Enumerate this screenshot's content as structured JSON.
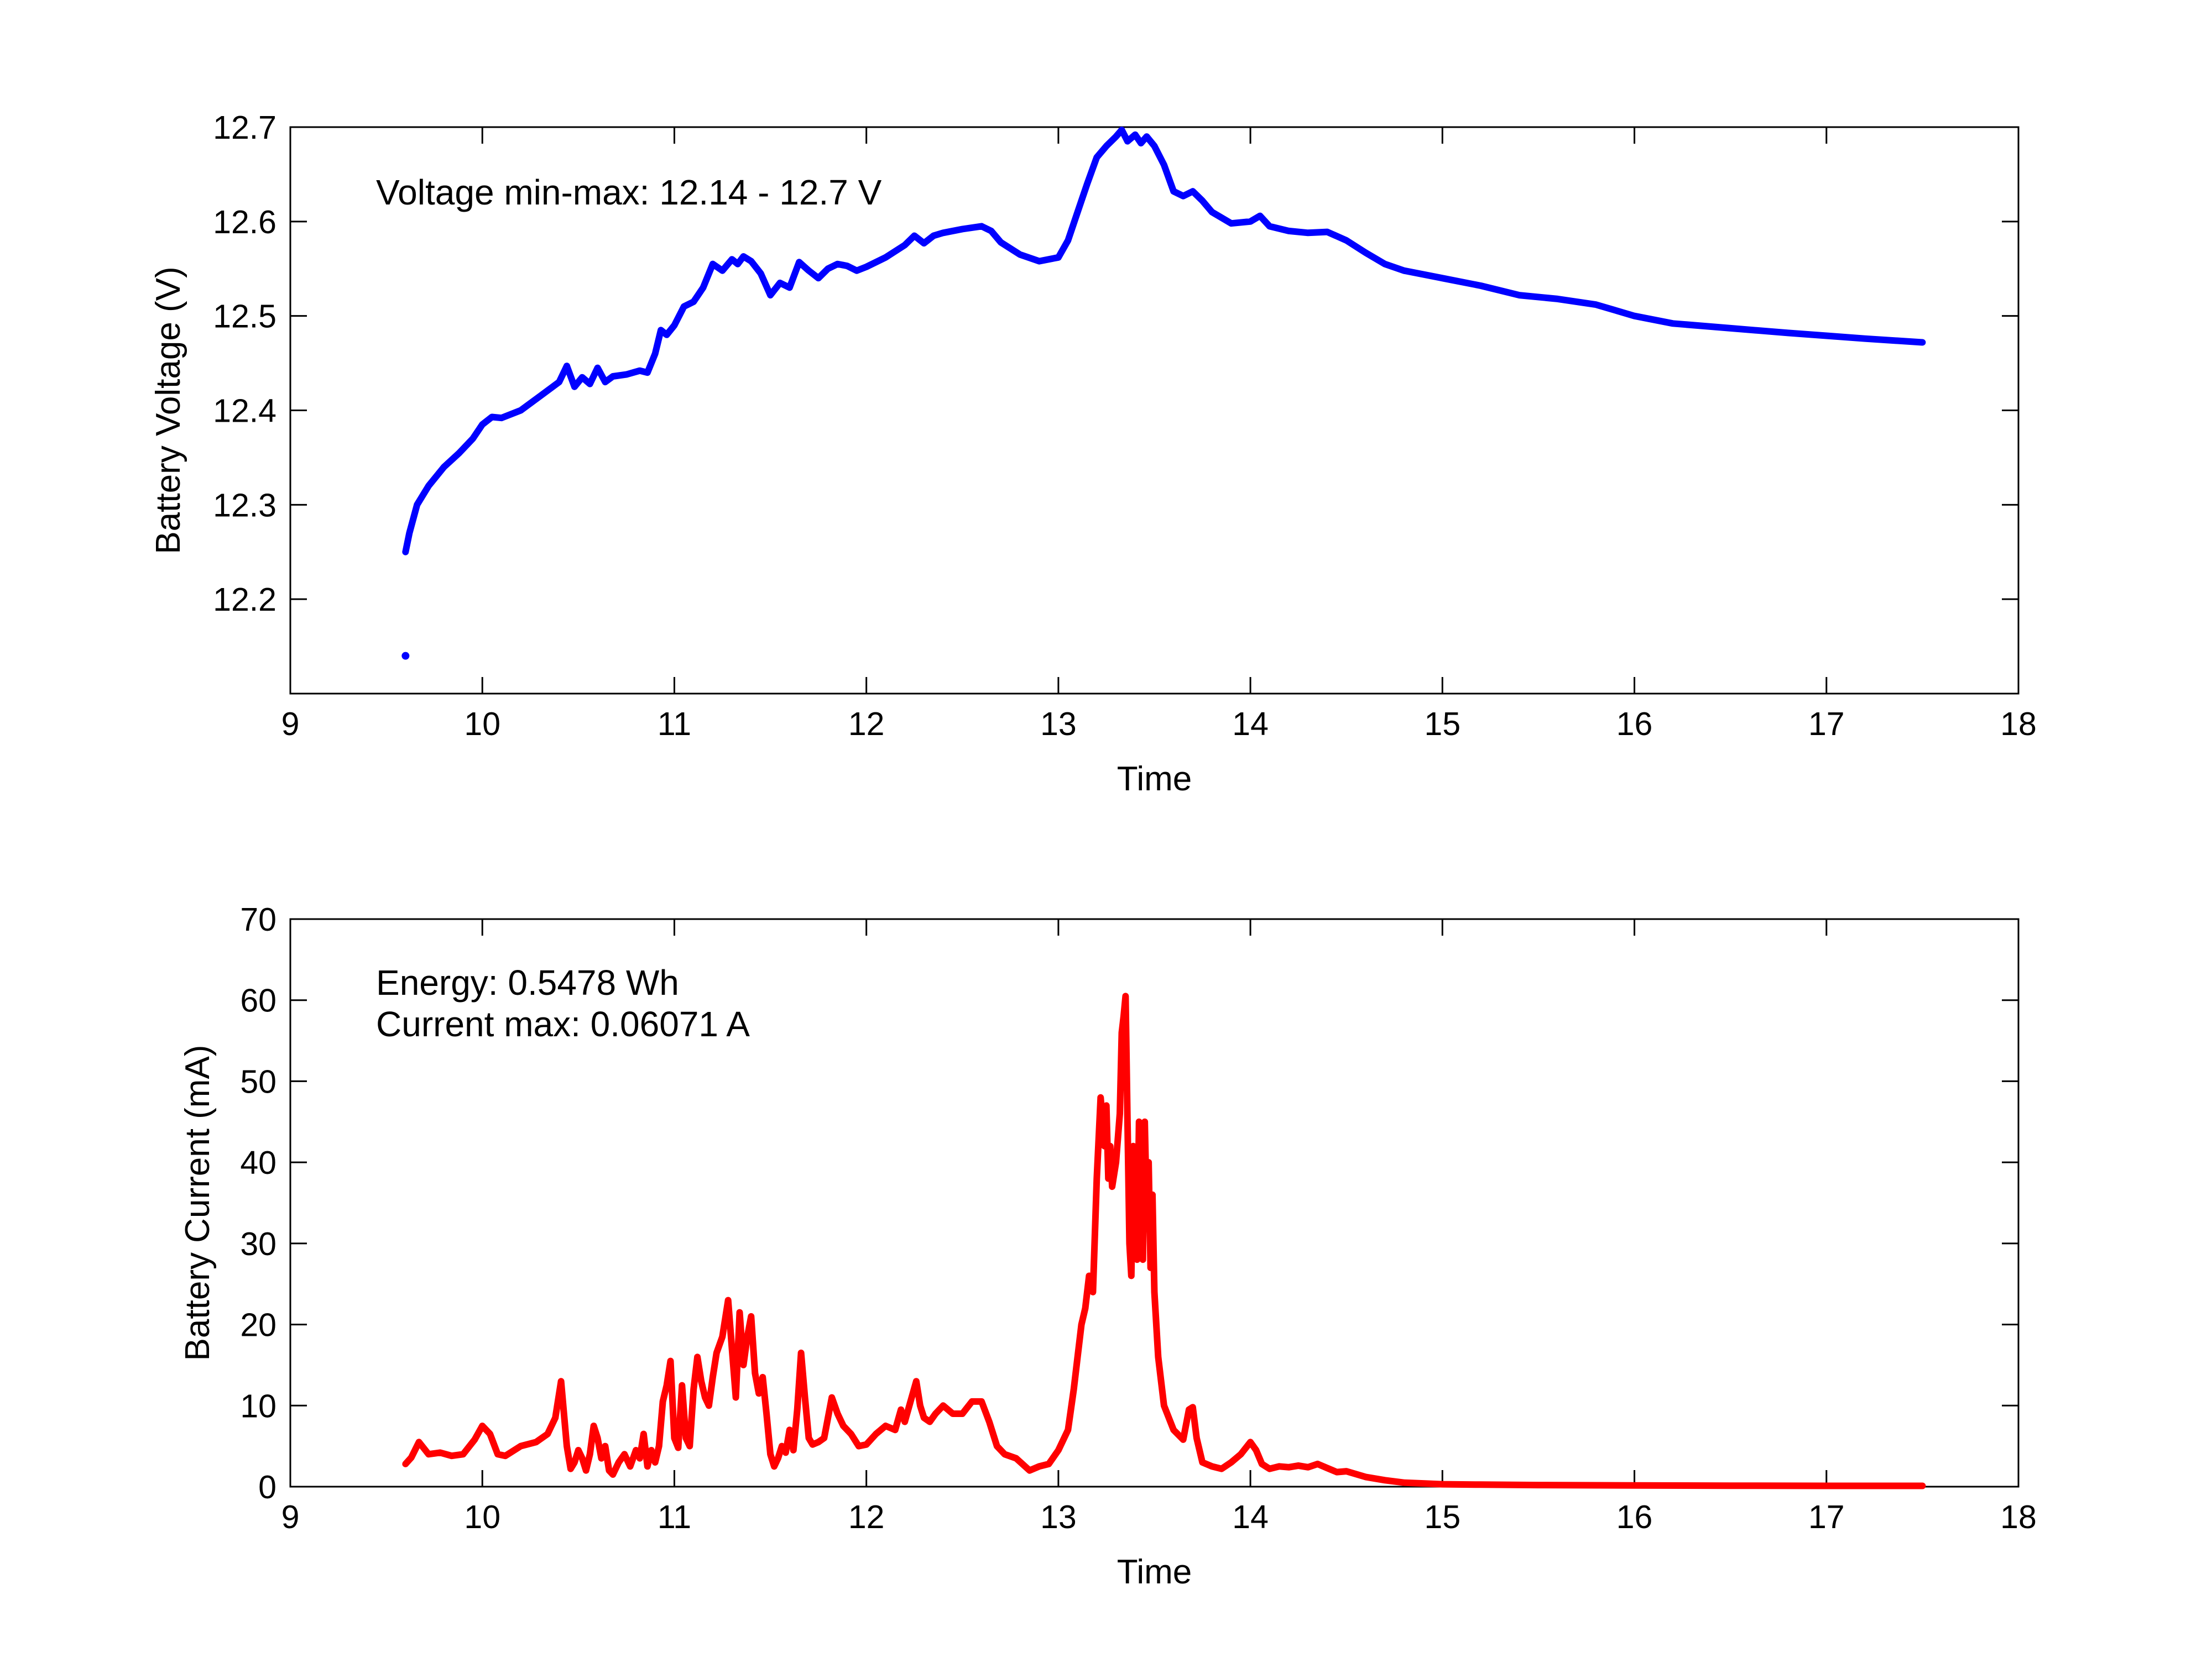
{
  "chart_data": [
    {
      "type": "line",
      "id": "voltage",
      "xlabel": "Time",
      "ylabel": "Battery Voltage (V)",
      "xlim": [
        9,
        18
      ],
      "ylim": [
        12.1,
        12.7
      ],
      "xticks": [
        9,
        10,
        11,
        12,
        13,
        14,
        15,
        16,
        17,
        18
      ],
      "yticks": [
        12.2,
        12.3,
        12.4,
        12.5,
        12.6,
        12.7
      ],
      "grid": false,
      "annotations": [
        "Voltage min-max: 12.14 - 12.7 V"
      ],
      "series": [
        {
          "color": "#0000ff",
          "x": [
            9.6,
            9.62,
            9.66,
            9.72,
            9.8,
            9.88,
            9.95,
            10.0,
            10.05,
            10.1,
            10.2,
            10.3,
            10.4,
            10.44,
            10.48,
            10.52,
            10.56,
            10.6,
            10.64,
            10.68,
            10.75,
            10.82,
            10.86,
            10.9,
            10.93,
            10.96,
            11.0,
            11.05,
            11.1,
            11.15,
            11.2,
            11.25,
            11.3,
            11.33,
            11.36,
            11.4,
            11.45,
            11.5,
            11.55,
            11.6,
            11.65,
            11.7,
            11.75,
            11.8,
            11.85,
            11.9,
            11.95,
            12.0,
            12.1,
            12.2,
            12.25,
            12.3,
            12.35,
            12.4,
            12.5,
            12.6,
            12.65,
            12.7,
            12.8,
            12.9,
            13.0,
            13.05,
            13.1,
            13.15,
            13.2,
            13.25,
            13.3,
            13.33,
            13.36,
            13.4,
            13.43,
            13.46,
            13.5,
            13.55,
            13.6,
            13.65,
            13.7,
            13.75,
            13.8,
            13.9,
            14.0,
            14.05,
            14.1,
            14.2,
            14.3,
            14.4,
            14.5,
            14.6,
            14.7,
            14.8,
            15.0,
            15.2,
            15.4,
            15.6,
            15.8,
            16.0,
            16.2,
            16.5,
            16.8,
            17.0,
            17.2,
            17.5
          ],
          "y": [
            12.25,
            12.27,
            12.3,
            12.32,
            12.34,
            12.355,
            12.37,
            12.385,
            12.393,
            12.392,
            12.4,
            12.415,
            12.43,
            12.447,
            12.425,
            12.435,
            12.428,
            12.445,
            12.43,
            12.436,
            12.438,
            12.442,
            12.44,
            12.46,
            12.485,
            12.48,
            12.49,
            12.51,
            12.515,
            12.53,
            12.555,
            12.548,
            12.56,
            12.555,
            12.563,
            12.558,
            12.545,
            12.522,
            12.535,
            12.53,
            12.557,
            12.548,
            12.54,
            12.55,
            12.555,
            12.553,
            12.548,
            12.552,
            12.562,
            12.575,
            12.585,
            12.577,
            12.585,
            12.588,
            12.592,
            12.595,
            12.59,
            12.578,
            12.565,
            12.558,
            12.562,
            12.58,
            12.61,
            12.64,
            12.668,
            12.68,
            12.69,
            12.697,
            12.685,
            12.692,
            12.683,
            12.69,
            12.68,
            12.66,
            12.632,
            12.627,
            12.632,
            12.622,
            12.61,
            12.598,
            12.6,
            12.606,
            12.595,
            12.59,
            12.588,
            12.589,
            12.58,
            12.567,
            12.555,
            12.548,
            12.54,
            12.532,
            12.522,
            12.518,
            12.512,
            12.5,
            12.492,
            12.487,
            12.482,
            12.479,
            12.476,
            12.472
          ]
        },
        {
          "color": "#0000ff",
          "x": [
            9.6
          ],
          "y": [
            12.14
          ]
        }
      ]
    },
    {
      "type": "line",
      "id": "current",
      "xlabel": "Time",
      "ylabel": "Battery Current (mA)",
      "xlim": [
        9,
        18
      ],
      "ylim": [
        0,
        70
      ],
      "xticks": [
        9,
        10,
        11,
        12,
        13,
        14,
        15,
        16,
        17,
        18
      ],
      "yticks": [
        0,
        10,
        20,
        30,
        40,
        50,
        60,
        70
      ],
      "grid": false,
      "annotations": [
        "Energy: 0.5478 Wh",
        "Current max: 0.06071 A"
      ],
      "series": [
        {
          "color": "#ff0000",
          "x": [
            9.6,
            9.63,
            9.67,
            9.72,
            9.78,
            9.84,
            9.9,
            9.96,
            10.0,
            10.04,
            10.08,
            10.12,
            10.2,
            10.28,
            10.34,
            10.38,
            10.41,
            10.44,
            10.46,
            10.48,
            10.5,
            10.52,
            10.54,
            10.56,
            10.58,
            10.6,
            10.62,
            10.64,
            10.66,
            10.68,
            10.71,
            10.74,
            10.77,
            10.8,
            10.82,
            10.84,
            10.86,
            10.88,
            10.9,
            10.92,
            10.94,
            10.96,
            10.98,
            11.0,
            11.02,
            11.04,
            11.06,
            11.08,
            11.1,
            11.12,
            11.14,
            11.16,
            11.18,
            11.2,
            11.22,
            11.25,
            11.28,
            11.3,
            11.32,
            11.34,
            11.36,
            11.38,
            11.4,
            11.42,
            11.44,
            11.46,
            11.48,
            11.5,
            11.52,
            11.54,
            11.56,
            11.58,
            11.6,
            11.62,
            11.64,
            11.66,
            11.68,
            11.7,
            11.72,
            11.75,
            11.78,
            11.82,
            11.85,
            11.88,
            11.92,
            11.96,
            12.0,
            12.05,
            12.1,
            12.15,
            12.18,
            12.2,
            12.23,
            12.26,
            12.28,
            12.3,
            12.33,
            12.36,
            12.4,
            12.45,
            12.5,
            12.55,
            12.6,
            12.64,
            12.68,
            12.72,
            12.78,
            12.85,
            12.9,
            12.95,
            13.0,
            13.05,
            13.08,
            13.1,
            13.12,
            13.14,
            13.16,
            13.18,
            13.2,
            13.22,
            13.24,
            13.25,
            13.26,
            13.27,
            13.28,
            13.3,
            13.32,
            13.33,
            13.34,
            13.35,
            13.36,
            13.37,
            13.38,
            13.39,
            13.4,
            13.41,
            13.42,
            13.43,
            13.44,
            13.45,
            13.46,
            13.47,
            13.48,
            13.49,
            13.5,
            13.52,
            13.55,
            13.6,
            13.65,
            13.68,
            13.7,
            13.72,
            13.75,
            13.8,
            13.85,
            13.9,
            13.95,
            14.0,
            14.03,
            14.06,
            14.1,
            14.15,
            14.2,
            14.25,
            14.3,
            14.35,
            14.4,
            14.45,
            14.5,
            14.6,
            14.7,
            14.8,
            14.9,
            15.0,
            15.2,
            15.5,
            16.0,
            16.5,
            17.0,
            17.5
          ],
          "y": [
            2.8,
            3.6,
            5.5,
            4.0,
            4.2,
            3.8,
            4.0,
            5.8,
            7.5,
            6.5,
            4.0,
            3.8,
            5.0,
            5.5,
            6.5,
            8.5,
            13.0,
            5.0,
            2.2,
            3.0,
            4.5,
            3.5,
            2.0,
            4.0,
            7.5,
            6.0,
            3.5,
            5.0,
            2.0,
            1.5,
            3.0,
            4.0,
            2.5,
            4.5,
            3.5,
            6.5,
            2.5,
            4.5,
            3.0,
            5.0,
            10.5,
            12.5,
            15.5,
            6.0,
            4.8,
            12.5,
            6.0,
            5.0,
            12.0,
            16.0,
            13.0,
            11.0,
            10.0,
            13.5,
            16.5,
            18.5,
            23.0,
            17.0,
            11.0,
            21.5,
            15.0,
            18.5,
            21.0,
            14.0,
            11.5,
            13.5,
            9.0,
            4.0,
            2.5,
            3.5,
            5.0,
            4.2,
            7.0,
            4.5,
            9.5,
            16.5,
            11.0,
            6.0,
            5.2,
            5.5,
            6.0,
            11.0,
            9.0,
            7.5,
            6.5,
            5.0,
            5.2,
            6.5,
            7.5,
            7.0,
            9.5,
            8.0,
            10.5,
            13.0,
            10.0,
            8.5,
            8.0,
            9.0,
            10.0,
            9.0,
            9.0,
            10.5,
            10.5,
            8.0,
            5.0,
            4.0,
            3.5,
            2.0,
            2.5,
            2.8,
            4.5,
            7.0,
            12.0,
            16.0,
            20.0,
            22.0,
            26.0,
            24.0,
            38.0,
            48.0,
            42.0,
            47.0,
            38.0,
            42.0,
            37.0,
            40.0,
            46.0,
            56.0,
            58.0,
            60.5,
            45.0,
            30.0,
            26.0,
            42.0,
            36.0,
            28.0,
            45.0,
            33.0,
            28.0,
            45.0,
            34.0,
            40.0,
            27.0,
            36.0,
            24.0,
            16.0,
            10.0,
            7.0,
            5.8,
            9.5,
            9.8,
            6.0,
            3.0,
            2.5,
            2.2,
            3.0,
            4.0,
            5.5,
            4.5,
            2.8,
            2.2,
            2.5,
            2.4,
            2.6,
            2.4,
            2.8,
            2.3,
            1.8,
            1.9,
            1.2,
            0.8,
            0.5,
            0.4,
            0.3,
            0.25,
            0.2,
            0.15,
            0.12,
            0.1,
            0.1
          ]
        }
      ]
    }
  ]
}
